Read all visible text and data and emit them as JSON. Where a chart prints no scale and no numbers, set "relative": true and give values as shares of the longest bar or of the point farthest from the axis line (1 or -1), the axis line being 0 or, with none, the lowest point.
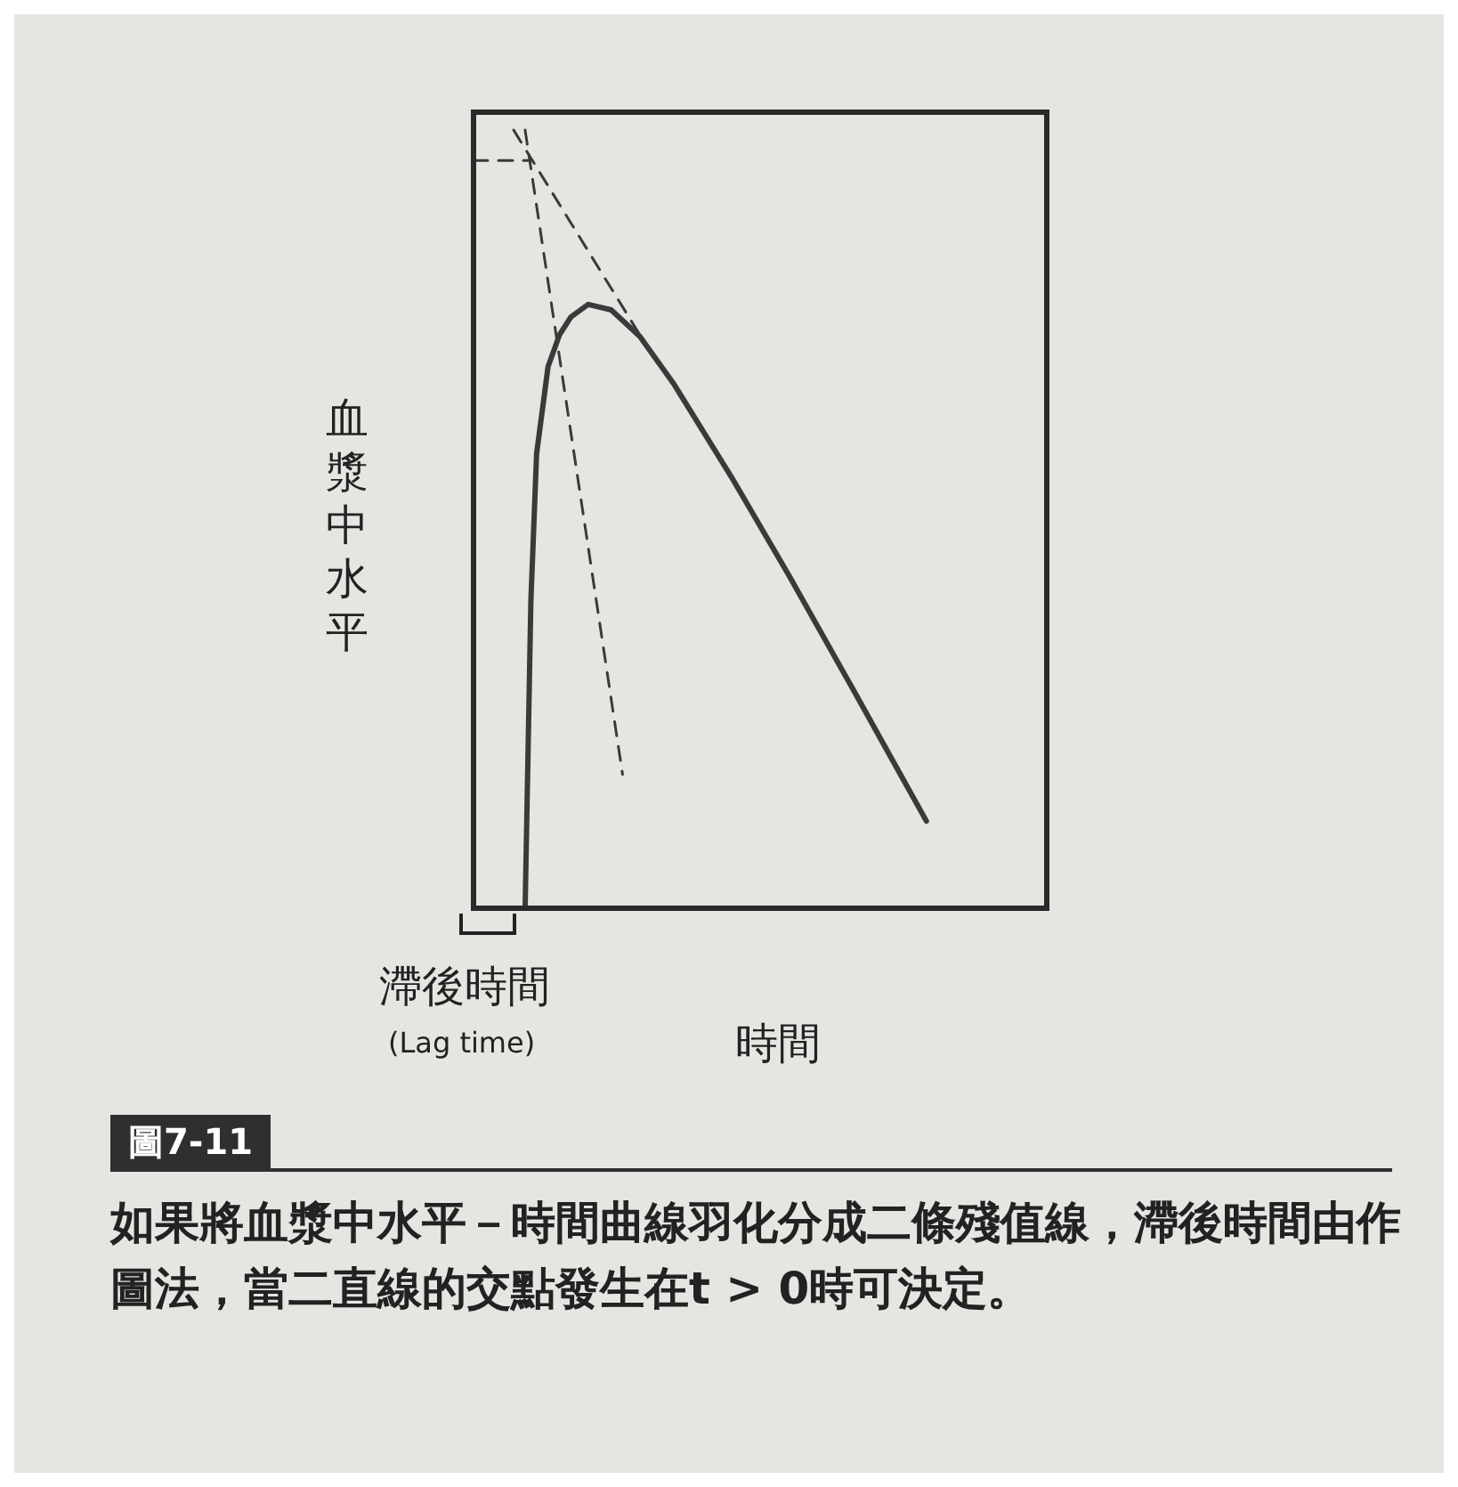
{
  "chart_data": {
    "type": "line",
    "relative": true,
    "ylabel": "血漿中水平",
    "xlabel": "時間",
    "annotations": [
      "滯後時間",
      "(Lag time)",
      "圖7-11",
      "如果將血漿中水平－時間曲線羽化分成二條殘值線，滯後時間由作圖法，當二直線的交點發生在t > 0時可決定。"
    ],
    "categories": [
      null,
      null,
      null,
      null,
      null,
      null,
      null,
      null,
      null,
      null,
      null,
      null,
      null,
      null,
      null,
      null,
      null,
      null,
      null,
      null,
      null,
      null,
      null,
      null,
      null,
      null,
      null,
      null,
      null,
      null,
      null,
      null,
      null,
      null,
      null,
      null,
      null,
      null,
      null,
      null,
      null,
      null,
      null,
      null,
      null,
      null,
      null,
      null,
      null,
      null,
      null,
      null,
      null,
      null,
      null,
      null,
      null,
      null,
      null,
      null,
      null,
      null,
      null,
      null,
      null,
      null,
      null,
      null,
      null,
      null,
      null,
      null,
      null,
      null,
      null,
      null,
      null,
      null,
      null,
      null,
      null,
      null,
      null,
      null,
      null,
      null,
      null,
      null,
      null,
      null,
      null,
      null,
      null,
      null,
      null,
      null,
      null,
      null,
      null,
      null,
      null
    ],
    "series": [
      {
        "color": "#3a3a3a",
        "line_style": "solid",
        "values": [
          null,
          null,
          null,
          null,
          null,
          null,
          null,
          null,
          null,
          0,
          0.394,
          0.584,
          null,
          0.696,
          null,
          0.737,
          null,
          0.76,
          null,
          null,
          0.776,
          null,
          null,
          null,
          0.769,
          null,
          null,
          null,
          null,
          0.735,
          null,
          null,
          null,
          null,
          null,
          0.673,
          null,
          null,
          null,
          null,
          null,
          null,
          null,
          null,
          null,
          0.554,
          null,
          null,
          null,
          null,
          null,
          null,
          null,
          null,
          null,
          0.428,
          null,
          null,
          null,
          null,
          null,
          null,
          null,
          null,
          null,
          null,
          0.284,
          null,
          null,
          null,
          null,
          null,
          null,
          null,
          null,
          null,
          null,
          null,
          null,
          0.112,
          null,
          null,
          null,
          null,
          null,
          null,
          null,
          null,
          null,
          null,
          null,
          null,
          null,
          null,
          null,
          null,
          null,
          null,
          null,
          null,
          null
        ]
      },
      {
        "color": "#3a3a3a",
        "line_style": "dashed",
        "values": [
          null,
          null,
          null,
          null,
          null,
          null,
          null,
          1,
          null,
          null,
          null,
          null,
          null,
          null,
          null,
          null,
          null,
          null,
          null,
          null,
          null,
          null,
          null,
          null,
          null,
          null,
          null,
          null,
          null,
          null,
          0.725,
          null,
          null,
          null,
          null,
          null,
          null,
          null,
          null,
          null,
          null,
          null,
          null,
          null,
          null,
          null,
          null,
          null,
          null,
          null,
          null,
          null,
          null,
          null,
          null,
          null,
          null,
          null,
          null,
          null,
          null,
          null,
          null,
          null,
          null,
          null,
          null,
          null,
          null,
          null,
          null,
          null,
          null,
          null,
          null,
          null,
          null,
          null,
          null,
          null,
          null,
          null,
          null,
          null,
          null,
          null,
          null,
          null,
          null,
          null,
          null,
          null,
          null,
          null,
          null,
          null,
          null,
          null,
          null,
          null,
          null
        ]
      },
      {
        "color": "#3a3a3a",
        "line_style": "dashed",
        "values": [
          null,
          null,
          null,
          null,
          null,
          null,
          null,
          null,
          null,
          1,
          null,
          null,
          null,
          null,
          null,
          null,
          null,
          null,
          null,
          null,
          null,
          null,
          null,
          null,
          null,
          null,
          0.172,
          null,
          null,
          null,
          null,
          null,
          null,
          null,
          null,
          null,
          null,
          null,
          null,
          null,
          null,
          null,
          null,
          null,
          null,
          null,
          null,
          null,
          null,
          null,
          null,
          null,
          null,
          null,
          null,
          null,
          null,
          null,
          null,
          null,
          null,
          null,
          null,
          null,
          null,
          null,
          null,
          null,
          null,
          null,
          null,
          null,
          null,
          null,
          null,
          null,
          null,
          null,
          null,
          null,
          null,
          null,
          null,
          null,
          null,
          null,
          null,
          null,
          null,
          null,
          null,
          null,
          null,
          null,
          null,
          null,
          null,
          null,
          null,
          null,
          null
        ]
      },
      {
        "color": "#3a3a3a",
        "line_style": "dashed",
        "values": [
          0.961,
          null,
          null,
          null,
          null,
          null,
          null,
          null,
          null,
          null,
          0.961,
          null,
          null,
          null,
          null,
          null,
          null,
          null,
          null,
          null,
          null,
          null,
          null,
          null,
          null,
          null,
          null,
          null,
          null,
          null,
          null,
          null,
          null,
          null,
          null,
          null,
          null,
          null,
          null,
          null,
          null,
          null,
          null,
          null,
          null,
          null,
          null,
          null,
          null,
          null,
          null,
          null,
          null,
          null,
          null,
          null,
          null,
          null,
          null,
          null,
          null,
          null,
          null,
          null,
          null,
          null,
          null,
          null,
          null,
          null,
          null,
          null,
          null,
          null,
          null,
          null,
          null,
          null,
          null,
          null,
          null,
          null,
          null,
          null,
          null,
          null,
          null,
          null,
          null,
          null,
          null,
          null,
          null,
          null,
          null,
          null,
          null,
          null,
          null,
          null,
          null
        ]
      }
    ]
  }
}
